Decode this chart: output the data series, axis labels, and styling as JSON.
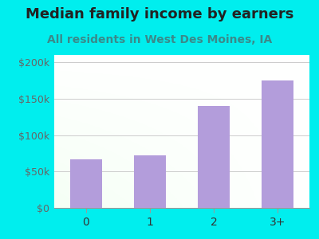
{
  "categories": [
    "0",
    "1",
    "2",
    "3+"
  ],
  "values": [
    67000,
    72000,
    140000,
    175000
  ],
  "bar_color": "#b39ddb",
  "title": "Median family income by earners",
  "subtitle": "All residents in West Des Moines, IA",
  "title_color": "#222222",
  "subtitle_color": "#3a8a8a",
  "ylabel_ticks": [
    0,
    50000,
    100000,
    150000,
    200000
  ],
  "ylabel_labels": [
    "$0",
    "$50k",
    "$100k",
    "$150k",
    "$200k"
  ],
  "ylim": [
    0,
    210000
  ],
  "background_outer": "#00EEEE",
  "title_fontsize": 13,
  "subtitle_fontsize": 10
}
